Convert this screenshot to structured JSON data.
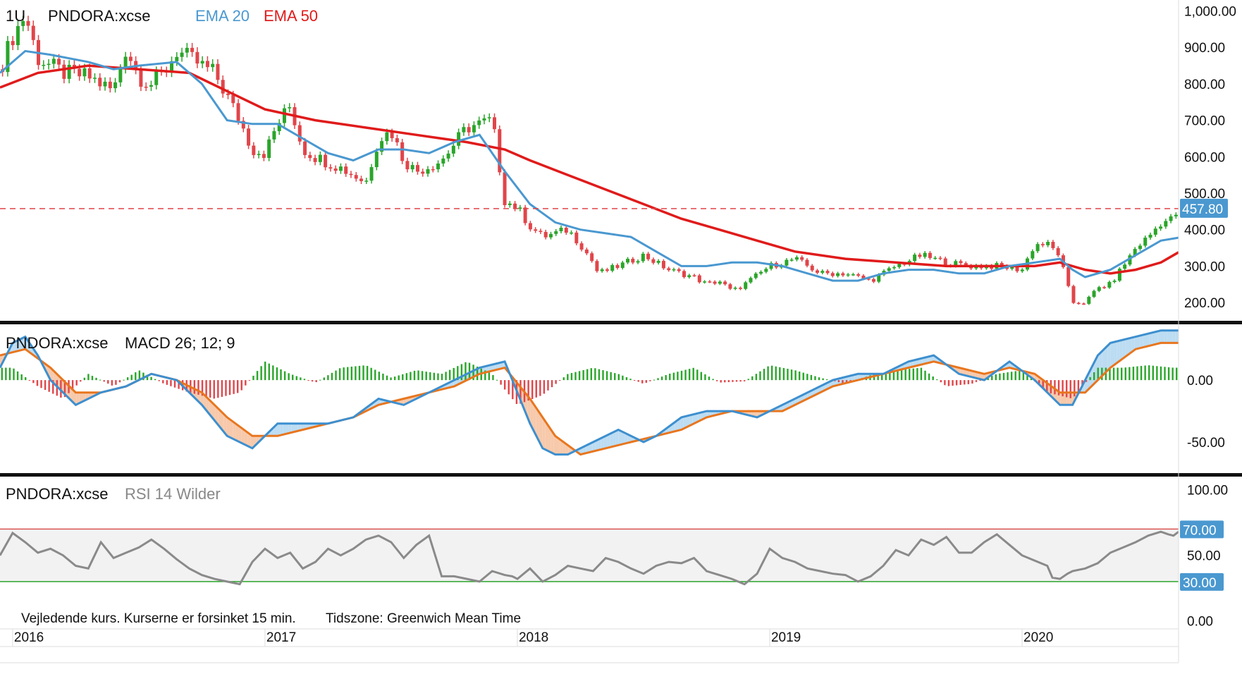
{
  "toolbar": {
    "period": "1U"
  },
  "notes": {
    "delay": "Vejledende kurs. Kurserne er forsinket 15 min.",
    "timezone": "Tidszone: Greenwich Mean Time"
  },
  "colors": {
    "candle_up": "#2aa52a",
    "candle_down": "#e0454a",
    "ema20": "#4a98d0",
    "ema50": "#e01b1b",
    "macd_line": "#3d8fcf",
    "signal_line": "#e8761e",
    "rsi_line": "#8a8a8a",
    "rsi_upper": "#d9534f",
    "rsi_lower": "#2aa52a",
    "price_badge": "#4a98d0"
  },
  "chart_data": [
    {
      "type": "candlestick",
      "panel": "price",
      "symbol": "PNDORA:xcse",
      "legend": [
        {
          "name": "EMA 20",
          "color": "#4a98d0"
        },
        {
          "name": "EMA 50",
          "color": "#e01b1b"
        }
      ],
      "x_labels": [
        "2016",
        "2017",
        "2018",
        "2019",
        "2020"
      ],
      "x_range": [
        2015.95,
        2020.62
      ],
      "ylim": [
        150,
        1030
      ],
      "y_ticks": [
        200,
        300,
        400,
        500,
        600,
        700,
        800,
        900,
        1000
      ],
      "y_tick_labels": [
        "200.00",
        "300.00",
        "400.00",
        "500.00",
        "600.00",
        "700.00",
        "800.00",
        "900.00",
        "1,000.00"
      ],
      "last_price": 457.8,
      "last_price_label": "457.80",
      "close": {
        "x": [
          2015.95,
          2016.0,
          2016.05,
          2016.1,
          2016.15,
          2016.2,
          2016.3,
          2016.4,
          2016.45,
          2016.5,
          2016.55,
          2016.6,
          2016.65,
          2016.7,
          2016.8,
          2016.9,
          2016.95,
          2017.0,
          2017.05,
          2017.1,
          2017.15,
          2017.2,
          2017.3,
          2017.4,
          2017.45,
          2017.5,
          2017.55,
          2017.6,
          2017.7,
          2017.8,
          2017.9,
          2017.95,
          2018.0,
          2018.05,
          2018.1,
          2018.2,
          2018.25,
          2018.3,
          2018.32,
          2018.4,
          2018.5,
          2018.55,
          2018.6,
          2018.7,
          2018.75,
          2018.8,
          2018.85,
          2018.9,
          2019.0,
          2019.1,
          2019.2,
          2019.3,
          2019.4,
          2019.5,
          2019.6,
          2019.7,
          2019.8,
          2019.9,
          2020.0,
          2020.05,
          2020.1,
          2020.15,
          2020.17,
          2020.2,
          2020.25,
          2020.3,
          2020.35,
          2020.4,
          2020.45,
          2020.5,
          2020.55,
          2020.6,
          2020.62
        ],
        "y": [
          840,
          930,
          990,
          870,
          850,
          830,
          820,
          780,
          900,
          820,
          800,
          830,
          890,
          870,
          830,
          700,
          620,
          610,
          690,
          740,
          620,
          600,
          570,
          530,
          650,
          670,
          590,
          560,
          590,
          680,
          700,
          480,
          460,
          410,
          380,
          400,
          360,
          310,
          280,
          300,
          330,
          310,
          290,
          270,
          250,
          260,
          230,
          250,
          300,
          320,
          280,
          280,
          260,
          300,
          330,
          310,
          300,
          300,
          290,
          360,
          360,
          330,
          270,
          200,
          200,
          240,
          250,
          300,
          350,
          380,
          420,
          430,
          457.8
        ]
      },
      "ema20": {
        "x": [
          2015.95,
          2016.05,
          2016.15,
          2016.3,
          2016.4,
          2016.5,
          2016.65,
          2016.75,
          2016.85,
          2016.95,
          2017.05,
          2017.15,
          2017.25,
          2017.35,
          2017.45,
          2017.55,
          2017.65,
          2017.75,
          2017.85,
          2017.95,
          2018.05,
          2018.15,
          2018.25,
          2018.35,
          2018.45,
          2018.55,
          2018.65,
          2018.75,
          2018.85,
          2018.95,
          2019.05,
          2019.15,
          2019.25,
          2019.35,
          2019.45,
          2019.55,
          2019.65,
          2019.75,
          2019.85,
          2019.95,
          2020.05,
          2020.15,
          2020.2,
          2020.25,
          2020.35,
          2020.45,
          2020.55,
          2020.62
        ],
        "y": [
          830,
          890,
          880,
          860,
          840,
          850,
          860,
          800,
          700,
          690,
          690,
          650,
          610,
          590,
          620,
          620,
          610,
          640,
          660,
          560,
          470,
          420,
          400,
          390,
          380,
          340,
          300,
          300,
          310,
          310,
          300,
          280,
          260,
          260,
          280,
          290,
          290,
          280,
          280,
          300,
          310,
          320,
          290,
          270,
          290,
          330,
          370,
          378
        ]
      },
      "ema50": {
        "x": [
          2015.95,
          2016.1,
          2016.3,
          2016.5,
          2016.7,
          2016.85,
          2017.0,
          2017.2,
          2017.4,
          2017.6,
          2017.8,
          2017.95,
          2018.05,
          2018.2,
          2018.35,
          2018.5,
          2018.65,
          2018.8,
          2018.95,
          2019.1,
          2019.3,
          2019.5,
          2019.7,
          2019.9,
          2020.05,
          2020.15,
          2020.25,
          2020.35,
          2020.45,
          2020.55,
          2020.62
        ],
        "y": [
          790,
          830,
          850,
          840,
          830,
          780,
          730,
          700,
          680,
          660,
          640,
          620,
          590,
          550,
          510,
          470,
          430,
          400,
          370,
          340,
          320,
          310,
          300,
          300,
          300,
          310,
          290,
          280,
          290,
          310,
          338
        ]
      }
    },
    {
      "type": "line",
      "panel": "macd",
      "symbol": "PNDORA:xcse",
      "name": "MACD 26; 12; 9",
      "ylim": [
        -75,
        45
      ],
      "y_ticks": [
        -50,
        0
      ],
      "y_tick_labels": [
        "-50.00",
        "0.00"
      ],
      "macd": {
        "x": [
          2015.95,
          2016.0,
          2016.05,
          2016.1,
          2016.15,
          2016.25,
          2016.35,
          2016.45,
          2016.55,
          2016.65,
          2016.75,
          2016.85,
          2016.95,
          2017.05,
          2017.15,
          2017.25,
          2017.35,
          2017.45,
          2017.55,
          2017.65,
          2017.75,
          2017.85,
          2017.95,
          2018.0,
          2018.05,
          2018.1,
          2018.15,
          2018.2,
          2018.3,
          2018.4,
          2018.5,
          2018.55,
          2018.65,
          2018.75,
          2018.85,
          2018.95,
          2019.05,
          2019.15,
          2019.25,
          2019.35,
          2019.45,
          2019.55,
          2019.65,
          2019.75,
          2019.85,
          2019.95,
          2020.05,
          2020.1,
          2020.15,
          2020.2,
          2020.25,
          2020.3,
          2020.35,
          2020.45,
          2020.55,
          2020.62
        ],
        "y": [
          10,
          30,
          35,
          20,
          0,
          -20,
          -10,
          -5,
          5,
          0,
          -20,
          -45,
          -55,
          -35,
          -35,
          -35,
          -30,
          -15,
          -20,
          -10,
          0,
          10,
          15,
          -10,
          -35,
          -55,
          -60,
          -60,
          -50,
          -40,
          -50,
          -45,
          -30,
          -25,
          -25,
          -30,
          -20,
          -10,
          0,
          5,
          5,
          15,
          20,
          5,
          0,
          15,
          0,
          -10,
          -20,
          -20,
          0,
          20,
          30,
          35,
          40,
          40
        ]
      },
      "signal": {
        "x": [
          2015.95,
          2016.05,
          2016.15,
          2016.25,
          2016.35,
          2016.45,
          2016.55,
          2016.65,
          2016.75,
          2016.85,
          2016.95,
          2017.05,
          2017.15,
          2017.25,
          2017.35,
          2017.45,
          2017.55,
          2017.65,
          2017.75,
          2017.85,
          2017.95,
          2018.05,
          2018.15,
          2018.25,
          2018.35,
          2018.45,
          2018.55,
          2018.65,
          2018.75,
          2018.85,
          2018.95,
          2019.05,
          2019.15,
          2019.25,
          2019.35,
          2019.45,
          2019.55,
          2019.65,
          2019.75,
          2019.85,
          2019.95,
          2020.05,
          2020.15,
          2020.25,
          2020.35,
          2020.45,
          2020.55,
          2020.62
        ],
        "y": [
          20,
          25,
          10,
          -10,
          -10,
          -5,
          5,
          0,
          -10,
          -30,
          -45,
          -45,
          -40,
          -35,
          -30,
          -20,
          -15,
          -10,
          -5,
          5,
          10,
          -15,
          -45,
          -60,
          -55,
          -50,
          -45,
          -40,
          -30,
          -25,
          -25,
          -25,
          -15,
          -5,
          0,
          5,
          10,
          15,
          10,
          5,
          10,
          5,
          -10,
          -10,
          10,
          25,
          30,
          30
        ]
      },
      "histogram": {
        "x": [
          2016.0,
          2016.1,
          2016.2,
          2016.3,
          2016.4,
          2016.5,
          2016.6,
          2016.7,
          2016.8,
          2016.9,
          2017.0,
          2017.1,
          2017.2,
          2017.3,
          2017.4,
          2017.5,
          2017.6,
          2017.7,
          2017.8,
          2017.9,
          2018.0,
          2018.1,
          2018.2,
          2018.3,
          2018.4,
          2018.5,
          2018.6,
          2018.7,
          2018.8,
          2018.9,
          2019.0,
          2019.1,
          2019.2,
          2019.3,
          2019.4,
          2019.5,
          2019.6,
          2019.7,
          2019.8,
          2019.9,
          2020.0,
          2020.1,
          2020.2,
          2020.3,
          2020.4,
          2020.5,
          2020.6
        ],
        "y": [
          10,
          -5,
          -15,
          5,
          -5,
          8,
          -3,
          -10,
          -15,
          -10,
          15,
          5,
          -2,
          10,
          12,
          2,
          8,
          5,
          15,
          5,
          -20,
          -12,
          5,
          10,
          5,
          -3,
          5,
          10,
          -2,
          -1,
          12,
          8,
          2,
          -3,
          4,
          8,
          10,
          -5,
          -3,
          5,
          8,
          -10,
          -15,
          10,
          10,
          12,
          10
        ]
      }
    },
    {
      "type": "line",
      "panel": "rsi",
      "symbol": "PNDORA:xcse",
      "name": "RSI 14 Wilder",
      "ylim": [
        -5,
        110
      ],
      "y_ticks": [
        0,
        50,
        100
      ],
      "y_tick_labels": [
        "0.00",
        "50.00",
        "100.00"
      ],
      "upper_band": 70,
      "upper_band_label": "70.00",
      "lower_band": 30,
      "lower_band_label": "30.00",
      "rsi": {
        "x": [
          2015.95,
          2016.0,
          2016.05,
          2016.1,
          2016.15,
          2016.2,
          2016.25,
          2016.3,
          2016.35,
          2016.4,
          2016.45,
          2016.5,
          2016.55,
          2016.6,
          2016.65,
          2016.7,
          2016.75,
          2016.8,
          2016.85,
          2016.9,
          2016.95,
          2017.0,
          2017.05,
          2017.1,
          2017.15,
          2017.2,
          2017.25,
          2017.3,
          2017.35,
          2017.4,
          2017.45,
          2017.5,
          2017.55,
          2017.6,
          2017.65,
          2017.7,
          2017.75,
          2017.8,
          2017.85,
          2017.9,
          2017.95,
          2017.98,
          2018.0,
          2018.05,
          2018.1,
          2018.15,
          2018.2,
          2018.25,
          2018.3,
          2018.35,
          2018.4,
          2018.45,
          2018.5,
          2018.55,
          2018.6,
          2018.65,
          2018.7,
          2018.75,
          2018.8,
          2018.85,
          2018.9,
          2018.95,
          2019.0,
          2019.05,
          2019.1,
          2019.15,
          2019.2,
          2019.25,
          2019.3,
          2019.35,
          2019.4,
          2019.45,
          2019.5,
          2019.55,
          2019.6,
          2019.65,
          2019.7,
          2019.75,
          2019.8,
          2019.85,
          2019.9,
          2019.95,
          2020.0,
          2020.05,
          2020.1,
          2020.12,
          2020.15,
          2020.18,
          2020.2,
          2020.25,
          2020.3,
          2020.35,
          2020.4,
          2020.45,
          2020.5,
          2020.55,
          2020.58,
          2020.6,
          2020.62
        ],
        "y": [
          50,
          67,
          60,
          52,
          55,
          50,
          42,
          40,
          60,
          48,
          52,
          56,
          62,
          55,
          47,
          40,
          35,
          32,
          30,
          28,
          45,
          55,
          48,
          52,
          40,
          45,
          55,
          50,
          55,
          62,
          65,
          60,
          48,
          58,
          65,
          34,
          34,
          32,
          30,
          38,
          35,
          34,
          32,
          40,
          30,
          35,
          42,
          40,
          38,
          48,
          45,
          40,
          36,
          42,
          45,
          44,
          48,
          38,
          35,
          32,
          28,
          36,
          55,
          48,
          45,
          40,
          38,
          36,
          35,
          30,
          34,
          42,
          54,
          50,
          62,
          58,
          64,
          52,
          52,
          60,
          66,
          58,
          50,
          46,
          42,
          33,
          32,
          36,
          38,
          40,
          44,
          52,
          56,
          60,
          65,
          68,
          66,
          65,
          68
        ]
      }
    }
  ]
}
